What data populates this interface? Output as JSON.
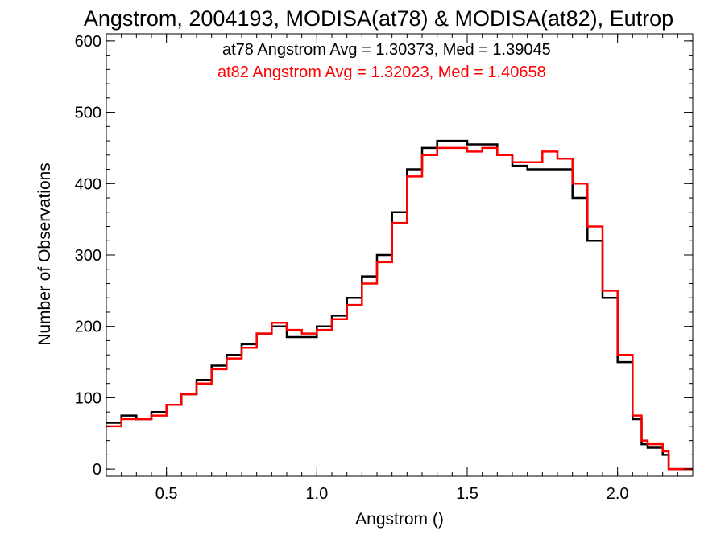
{
  "chart_data": {
    "type": "line",
    "style": "step-histogram",
    "title": "Angstrom, 2004193, MODISA(at78) & MODISA(at82), Eutrop",
    "xlabel": "Angstrom ()",
    "ylabel": "Number of Observations",
    "xlim": [
      0.3,
      2.25
    ],
    "ylim": [
      -10,
      610
    ],
    "x_ticks": [
      0.5,
      1.0,
      1.5,
      2.0
    ],
    "x_tick_labels": [
      "0.5",
      "1.0",
      "1.5",
      "2.0"
    ],
    "y_ticks": [
      0,
      100,
      200,
      300,
      400,
      500,
      600
    ],
    "y_tick_labels": [
      "0",
      "100",
      "200",
      "300",
      "400",
      "500",
      "600"
    ],
    "grid": false,
    "annotations": [
      {
        "text": "at78 Angstrom Avg = 1.30373, Med = 1.39045",
        "color": "#000000"
      },
      {
        "text": "at82 Angstrom Avg = 1.32023, Med = 1.40658",
        "color": "#ff0000"
      }
    ],
    "series": [
      {
        "color": "#000000",
        "x": [
          0.3,
          0.35,
          0.4,
          0.45,
          0.5,
          0.55,
          0.6,
          0.65,
          0.7,
          0.75,
          0.8,
          0.85,
          0.9,
          0.95,
          1.0,
          1.05,
          1.1,
          1.15,
          1.2,
          1.25,
          1.3,
          1.35,
          1.4,
          1.45,
          1.5,
          1.55,
          1.6,
          1.65,
          1.7,
          1.75,
          1.8,
          1.85,
          1.9,
          1.95,
          2.0,
          2.05,
          2.08,
          2.1,
          2.15,
          2.17,
          2.25
        ],
        "y": [
          65,
          75,
          70,
          80,
          90,
          105,
          125,
          145,
          160,
          175,
          190,
          200,
          185,
          185,
          200,
          215,
          240,
          270,
          300,
          360,
          420,
          450,
          460,
          460,
          455,
          455,
          440,
          425,
          420,
          420,
          420,
          380,
          320,
          240,
          150,
          70,
          35,
          30,
          20,
          0,
          0
        ]
      },
      {
        "color": "#ff0000",
        "x": [
          0.3,
          0.35,
          0.4,
          0.45,
          0.5,
          0.55,
          0.6,
          0.65,
          0.7,
          0.75,
          0.8,
          0.85,
          0.9,
          0.95,
          1.0,
          1.05,
          1.1,
          1.15,
          1.2,
          1.25,
          1.3,
          1.35,
          1.4,
          1.45,
          1.5,
          1.55,
          1.6,
          1.65,
          1.7,
          1.75,
          1.8,
          1.85,
          1.9,
          1.95,
          2.0,
          2.05,
          2.08,
          2.1,
          2.15,
          2.17,
          2.25
        ],
        "y": [
          60,
          70,
          70,
          75,
          90,
          105,
          120,
          140,
          155,
          170,
          190,
          205,
          195,
          190,
          195,
          210,
          230,
          260,
          290,
          345,
          410,
          440,
          450,
          450,
          445,
          450,
          440,
          430,
          430,
          445,
          435,
          400,
          340,
          250,
          160,
          75,
          40,
          35,
          25,
          0,
          0
        ]
      }
    ]
  }
}
